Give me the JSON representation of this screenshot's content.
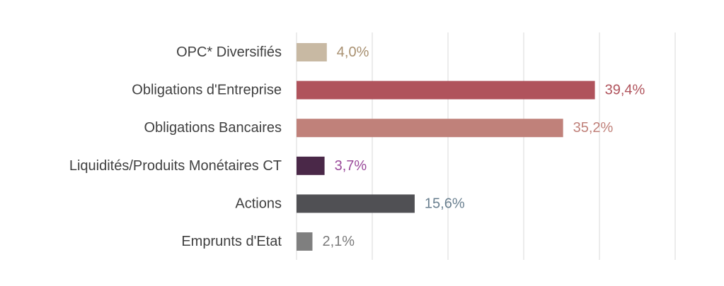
{
  "chart_data": {
    "type": "bar",
    "orientation": "horizontal",
    "categories": [
      "OPC* Diversifiés",
      "Obligations d'Entreprise",
      "Obligations Bancaires",
      "Liquidités/Produits Monétaires CT",
      "Actions",
      "Emprunts d'Etat"
    ],
    "values": [
      4.0,
      39.4,
      35.2,
      3.7,
      15.6,
      2.1
    ],
    "value_labels": [
      "4,0%",
      "39,4%",
      "35,2%",
      "3,7%",
      "15,6%",
      "2,1%"
    ],
    "bar_colors": [
      "#c8b9a3",
      "#b0535c",
      "#c0817a",
      "#4a2848",
      "#505054",
      "#7f7f7f"
    ],
    "label_colors": [
      "#a89070",
      "#b0535c",
      "#c0817a",
      "#9a4a9a",
      "#6a8090",
      "#7a7a7a"
    ],
    "xlim": [
      0,
      50
    ],
    "gridlines": [
      0,
      10,
      20,
      30,
      40,
      50
    ],
    "grid": true,
    "legend": "none",
    "title": "",
    "xlabel": "",
    "ylabel": ""
  }
}
